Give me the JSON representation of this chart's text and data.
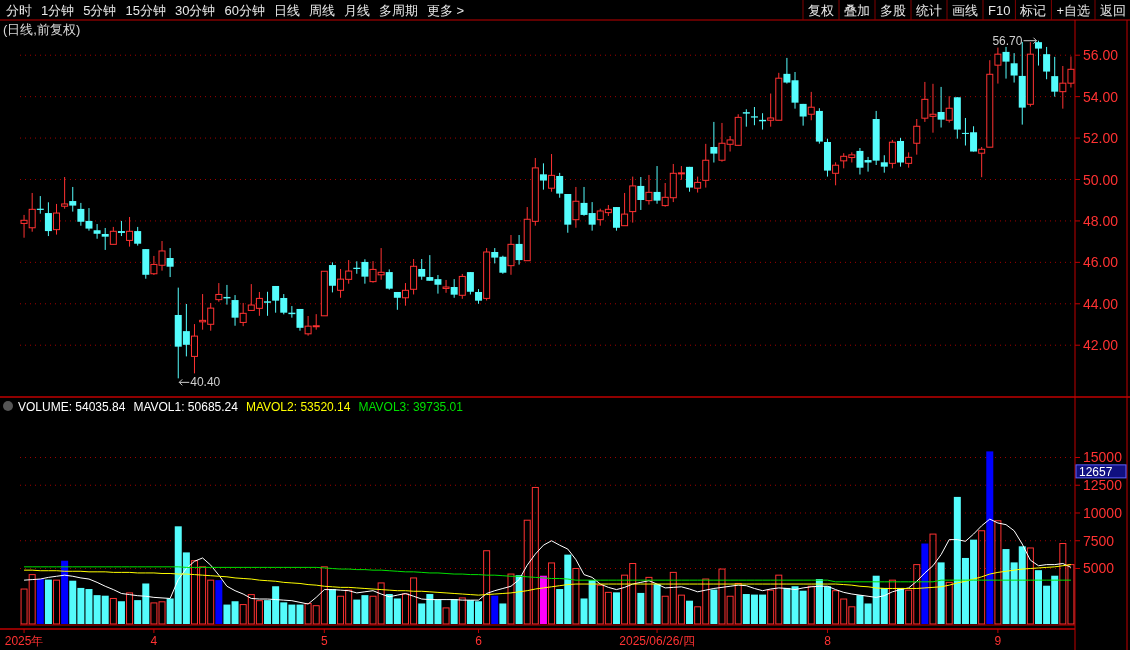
{
  "chart_data": [
    {
      "type": "other",
      "annotations": [
        "分时",
        "1分钟",
        "5分钟",
        "15分钟",
        "30分钟",
        "60分钟",
        "日线",
        "周线",
        "月线",
        "多周期",
        "更多 >",
        "复权",
        "叠加",
        "多股",
        "统计",
        "画线",
        "F10",
        "标记",
        "+自选",
        "返回"
      ]
    },
    {
      "type": "candlestick",
      "title": "(日线,前复权)",
      "tick_labels": "y",
      "grid": "y",
      "ylim": [
        39.5,
        57.7
      ],
      "colors": [
        "#ff3232",
        "#ff3232",
        "#54fcfc",
        "#54fcfc",
        "#ff3232",
        "#ff3232",
        "#54fcfc",
        "#54fcfc",
        "#54fcfc",
        "#54fcfc",
        "#54fcfc",
        "#ff3232",
        "#54fcfc",
        "#ff3232",
        "#54fcfc",
        "#54fcfc",
        "#ff3232",
        "#ff3232",
        "#54fcfc",
        "#54fcfc",
        "#54fcfc",
        "#ff3232",
        "#ff3232",
        "#ff3232",
        "#ff3232",
        "#54fcfc",
        "#54fcfc",
        "#ff3232",
        "#ff3232",
        "#ff3232",
        "#54fcfc",
        "#54fcfc",
        "#54fcfc",
        "#54fcfc",
        "#54fcfc",
        "#ff3232",
        "#ff3232",
        "#ff3232",
        "#54fcfc",
        "#ff3232",
        "#ff3232",
        "#54fcfc",
        "#54fcfc",
        "#ff3232",
        "#ff3232",
        "#54fcfc",
        "#54fcfc",
        "#ff3232",
        "#ff3232",
        "#54fcfc",
        "#54fcfc",
        "#54fcfc",
        "#ff3232",
        "#54fcfc",
        "#ff3232",
        "#54fcfc",
        "#54fcfc",
        "#ff3232",
        "#54fcfc",
        "#54fcfc",
        "#ff3232",
        "#54fcfc",
        "#ff3232",
        "#ff3232",
        "#54fcfc",
        "#ff3232",
        "#54fcfc",
        "#54fcfc",
        "#ff3232",
        "#54fcfc",
        "#54fcfc",
        "#ff3232",
        "#ff3232",
        "#54fcfc",
        "#ff3232",
        "#ff3232",
        "#54fcfc",
        "#ff3232",
        "#54fcfc",
        "#ff3232",
        "#ff3232",
        "#ff3232",
        "#54fcfc",
        "#ff3232",
        "#ff3232",
        "#54fcfc",
        "#ff3232",
        "#ff3232",
        "#ff3232",
        "#54fcfc",
        "#54fcfc",
        "#54fcfc",
        "#ff3232",
        "#ff3232",
        "#54fcfc",
        "#54fcfc",
        "#54fcfc",
        "#ff3232",
        "#54fcfc",
        "#54fcfc",
        "#ff3232",
        "#ff3232",
        "#ff3232",
        "#54fcfc",
        "#54fcfc",
        "#54fcfc",
        "#54fcfc",
        "#ff3232",
        "#54fcfc",
        "#ff3232",
        "#ff3232",
        "#ff3232",
        "#ff3232",
        "#54fcfc",
        "#ff3232",
        "#54fcfc",
        "#54fcfc",
        "#54fcfc",
        "#ff3232",
        "#ff3232",
        "#ff3232",
        "#54fcfc",
        "#54fcfc",
        "#54fcfc",
        "#ff3232",
        "#54fcfc",
        "#54fcfc",
        "#54fcfc",
        "#ff3232",
        "#ff3232"
      ],
      "yticks": [
        {
          "value": 42,
          "label": "42.00"
        },
        {
          "value": 44,
          "label": "44.00"
        },
        {
          "value": 46,
          "label": "46.00"
        },
        {
          "value": 48,
          "label": "48.00"
        },
        {
          "value": 50,
          "label": "50.00"
        },
        {
          "value": 52,
          "label": "52.00"
        },
        {
          "value": 54,
          "label": "54.00"
        },
        {
          "value": 56,
          "label": "56.00"
        }
      ],
      "annotations": [
        "56.70",
        "40.40"
      ],
      "categories": [
        null,
        null,
        null,
        null,
        null,
        null,
        null,
        null,
        null,
        null,
        null,
        null,
        null,
        null,
        null,
        null,
        null,
        null,
        null,
        null,
        null,
        null,
        null,
        null,
        null,
        null,
        null,
        null,
        null,
        null,
        null,
        null,
        null,
        null,
        null,
        null,
        null,
        null,
        null,
        null,
        null,
        null,
        null,
        null,
        null,
        null,
        null,
        null,
        null,
        null,
        null,
        null,
        null,
        null,
        null,
        null,
        null,
        null,
        null,
        null,
        null,
        null,
        null,
        null,
        null,
        null,
        null,
        null,
        null,
        null,
        null,
        null,
        null,
        null,
        null,
        null,
        null,
        null,
        null,
        null,
        null,
        null,
        null,
        null,
        null,
        null,
        null,
        null,
        null,
        null,
        null,
        null,
        null,
        null,
        null,
        null,
        null,
        null,
        null,
        null,
        null,
        null,
        null,
        null,
        null,
        null,
        null,
        null,
        null,
        null,
        null,
        null,
        null,
        null,
        null,
        null,
        null,
        null,
        null,
        null,
        null,
        null,
        null,
        null,
        null,
        null,
        null,
        null,
        null,
        null
      ],
      "ohlc": [
        [
          47.88,
          48.29,
          47.19,
          48.03
        ],
        [
          47.67,
          49.35,
          47.48,
          48.56
        ],
        [
          48.59,
          49.2,
          48.35,
          48.53
        ],
        [
          48.38,
          48.9,
          47.27,
          47.51
        ],
        [
          47.58,
          48.82,
          47.34,
          48.38
        ],
        [
          48.71,
          50.12,
          48.59,
          48.82
        ],
        [
          48.96,
          49.64,
          48.45,
          48.74
        ],
        [
          48.58,
          48.87,
          47.77,
          47.96
        ],
        [
          48.0,
          48.62,
          47.53,
          47.63
        ],
        [
          47.55,
          47.85,
          47.14,
          47.38
        ],
        [
          47.37,
          47.66,
          46.6,
          47.24
        ],
        [
          46.87,
          47.71,
          46.87,
          47.5
        ],
        [
          47.51,
          48.0,
          47.27,
          47.42
        ],
        [
          47.06,
          48.19,
          46.76,
          47.5
        ],
        [
          47.51,
          47.71,
          46.81,
          46.9
        ],
        [
          46.64,
          46.64,
          45.21,
          45.4
        ],
        [
          45.45,
          46.31,
          45.39,
          45.9
        ],
        [
          45.86,
          47.03,
          45.6,
          46.55
        ],
        [
          46.21,
          46.69,
          45.29,
          45.79
        ],
        [
          43.46,
          44.78,
          40.4,
          41.93
        ],
        [
          42.68,
          43.99,
          41.46,
          42.02
        ],
        [
          41.46,
          43.02,
          40.64,
          42.44
        ],
        [
          43.13,
          44.47,
          42.75,
          43.2
        ],
        [
          43.01,
          44.04,
          42.7,
          43.79
        ],
        [
          44.2,
          45.0,
          44.1,
          44.45
        ],
        [
          44.33,
          44.91,
          43.96,
          44.26
        ],
        [
          44.18,
          44.42,
          42.94,
          43.33
        ],
        [
          43.1,
          44.04,
          42.92,
          43.54
        ],
        [
          43.68,
          44.95,
          43.67,
          43.94
        ],
        [
          43.78,
          44.57,
          43.42,
          44.26
        ],
        [
          44.12,
          44.58,
          43.42,
          44.05
        ],
        [
          44.86,
          44.86,
          43.57,
          44.15
        ],
        [
          44.28,
          44.47,
          43.49,
          43.57
        ],
        [
          43.57,
          43.89,
          43.33,
          43.5
        ],
        [
          43.75,
          43.75,
          42.7,
          42.84
        ],
        [
          42.55,
          43.41,
          42.46,
          42.92
        ],
        [
          42.91,
          43.5,
          42.75,
          42.94
        ],
        [
          43.42,
          45.57,
          43.42,
          45.57
        ],
        [
          45.87,
          46.0,
          44.55,
          44.87
        ],
        [
          44.65,
          45.68,
          44.29,
          45.19
        ],
        [
          45.18,
          46.11,
          44.97,
          45.58
        ],
        [
          45.74,
          46.05,
          45.45,
          45.68
        ],
        [
          46.02,
          46.15,
          44.97,
          45.31
        ],
        [
          45.07,
          46.06,
          45.02,
          45.66
        ],
        [
          45.4,
          46.69,
          45.16,
          45.52
        ],
        [
          45.53,
          45.66,
          44.68,
          44.73
        ],
        [
          44.57,
          44.57,
          43.71,
          44.29
        ],
        [
          44.29,
          45.0,
          43.91,
          44.65
        ],
        [
          44.7,
          46.16,
          44.45,
          45.81
        ],
        [
          45.68,
          46.16,
          45.16,
          45.31
        ],
        [
          45.29,
          46.35,
          45.11,
          45.11
        ],
        [
          45.19,
          45.39,
          44.49,
          44.92
        ],
        [
          44.74,
          45.15,
          44.53,
          44.81
        ],
        [
          44.81,
          45.19,
          44.29,
          44.44
        ],
        [
          44.41,
          45.44,
          44.24,
          45.32
        ],
        [
          45.53,
          45.53,
          44.45,
          44.58
        ],
        [
          44.57,
          44.71,
          44.0,
          44.15
        ],
        [
          44.26,
          46.69,
          44.16,
          46.5
        ],
        [
          46.5,
          46.69,
          45.95,
          46.23
        ],
        [
          46.27,
          46.32,
          45.45,
          45.5
        ],
        [
          45.84,
          47.32,
          45.4,
          46.87
        ],
        [
          46.89,
          47.32,
          45.89,
          46.11
        ],
        [
          46.08,
          48.67,
          46.08,
          48.08
        ],
        [
          47.98,
          51.04,
          47.77,
          50.56
        ],
        [
          50.25,
          50.78,
          49.51,
          49.95
        ],
        [
          49.58,
          51.23,
          49.41,
          50.2
        ],
        [
          50.17,
          50.32,
          49.12,
          49.32
        ],
        [
          49.3,
          49.3,
          47.43,
          47.82
        ],
        [
          48.06,
          49.64,
          47.67,
          48.95
        ],
        [
          48.87,
          49.64,
          48.25,
          48.29
        ],
        [
          48.38,
          48.91,
          47.53,
          47.82
        ],
        [
          48.06,
          48.59,
          47.77,
          48.48
        ],
        [
          48.4,
          48.77,
          48.24,
          48.56
        ],
        [
          48.67,
          48.67,
          47.53,
          47.67
        ],
        [
          47.77,
          49.35,
          47.77,
          48.33
        ],
        [
          48.45,
          50.14,
          47.92,
          49.69
        ],
        [
          49.69,
          50.12,
          48.53,
          49.01
        ],
        [
          48.98,
          50.22,
          48.79,
          49.38
        ],
        [
          49.4,
          50.65,
          48.83,
          48.98
        ],
        [
          48.74,
          49.83,
          48.69,
          49.14
        ],
        [
          49.12,
          50.75,
          48.91,
          50.3
        ],
        [
          50.28,
          50.65,
          49.99,
          50.32
        ],
        [
          50.61,
          50.61,
          49.41,
          49.61
        ],
        [
          49.58,
          50.14,
          49.37,
          49.86
        ],
        [
          49.96,
          51.72,
          49.61,
          50.93
        ],
        [
          51.57,
          52.78,
          50.82,
          51.25
        ],
        [
          50.93,
          52.73,
          50.86,
          51.75
        ],
        [
          51.7,
          52.1,
          51.35,
          51.91
        ],
        [
          51.65,
          53.15,
          51.65,
          53.0
        ],
        [
          53.25,
          53.39,
          52.55,
          53.18
        ],
        [
          53.05,
          53.5,
          52.62,
          52.99
        ],
        [
          52.88,
          53.2,
          52.41,
          52.81
        ],
        [
          52.86,
          54.15,
          52.55,
          52.97
        ],
        [
          52.86,
          55.15,
          52.86,
          54.89
        ],
        [
          55.1,
          55.87,
          54.63,
          54.68
        ],
        [
          54.79,
          55.19,
          53.42,
          53.71
        ],
        [
          53.65,
          53.65,
          52.6,
          53.04
        ],
        [
          53.15,
          54.23,
          52.86,
          53.49
        ],
        [
          53.31,
          53.44,
          51.73,
          51.83
        ],
        [
          51.81,
          51.97,
          50.14,
          50.43
        ],
        [
          50.3,
          50.83,
          49.72,
          50.69
        ],
        [
          50.9,
          51.27,
          50.54,
          51.12
        ],
        [
          51.06,
          51.31,
          50.82,
          51.19
        ],
        [
          51.38,
          51.52,
          50.24,
          50.57
        ],
        [
          50.94,
          51.09,
          50.38,
          50.82
        ],
        [
          52.92,
          53.31,
          50.7,
          50.91
        ],
        [
          50.83,
          51.17,
          50.33,
          50.62
        ],
        [
          50.78,
          51.91,
          50.54,
          51.8
        ],
        [
          51.86,
          52.01,
          50.62,
          50.82
        ],
        [
          50.78,
          51.31,
          50.57,
          51.07
        ],
        [
          51.75,
          52.92,
          51.2,
          52.57
        ],
        [
          52.96,
          54.71,
          52.78,
          53.87
        ],
        [
          53.05,
          54.62,
          52.26,
          53.15
        ],
        [
          53.26,
          54.47,
          52.51,
          52.89
        ],
        [
          52.86,
          54.02,
          52.75,
          53.44
        ],
        [
          53.97,
          53.97,
          51.97,
          52.41
        ],
        [
          52.25,
          52.97,
          51.64,
          52.2
        ],
        [
          52.28,
          52.57,
          51.35,
          51.35
        ],
        [
          51.27,
          51.57,
          50.11,
          51.46
        ],
        [
          51.56,
          55.76,
          51.56,
          55.08
        ],
        [
          55.52,
          56.37,
          54.63,
          56.05
        ],
        [
          56.16,
          56.4,
          54.87,
          55.69
        ],
        [
          55.61,
          56.1,
          54.68,
          55.02
        ],
        [
          55.0,
          56.64,
          52.65,
          53.47
        ],
        [
          53.63,
          56.63,
          53.52,
          56.05
        ],
        [
          56.63,
          56.7,
          55.5,
          56.32
        ],
        [
          56.05,
          56.4,
          54.84,
          55.21
        ],
        [
          54.99,
          55.92,
          54.0,
          54.24
        ],
        [
          54.24,
          55.48,
          53.42,
          54.65
        ],
        [
          54.65,
          55.94,
          54.44,
          55.32
        ]
      ]
    },
    {
      "type": "bar",
      "title": "VOLUME: 54035.84",
      "legend": "top left",
      "grid": "y",
      "ylim": [
        0,
        20450
      ],
      "yticks": [
        5000,
        7500,
        10000,
        12500,
        15000
      ],
      "annotations": [
        "12657"
      ],
      "categories": [
        "2025年",
        null,
        null,
        null,
        null,
        null,
        null,
        null,
        null,
        null,
        null,
        null,
        null,
        null,
        null,
        null,
        "4",
        null,
        null,
        null,
        null,
        null,
        null,
        null,
        null,
        null,
        null,
        null,
        null,
        null,
        null,
        null,
        null,
        null,
        null,
        null,
        null,
        "5",
        null,
        null,
        null,
        null,
        null,
        null,
        null,
        null,
        null,
        null,
        null,
        null,
        null,
        null,
        null,
        null,
        null,
        null,
        "6",
        null,
        null,
        null,
        null,
        null,
        null,
        null,
        null,
        null,
        null,
        null,
        null,
        null,
        null,
        null,
        null,
        null,
        null,
        null,
        null,
        null,
        "2025/06/26/四",
        null,
        null,
        null,
        null,
        null,
        null,
        null,
        null,
        null,
        null,
        null,
        null,
        null,
        null,
        null,
        null,
        null,
        null,
        null,
        null,
        "8",
        null,
        null,
        null,
        null,
        null,
        null,
        null,
        null,
        null,
        null,
        null,
        null,
        null,
        null,
        null,
        null,
        null,
        null,
        null,
        null,
        "9",
        null,
        null,
        null,
        null,
        null,
        null,
        null,
        null,
        null
      ],
      "series": [
        {
          "type": "bar",
          "values": [
            3150,
            4450,
            4050,
            4000,
            3950,
            5700,
            3900,
            3250,
            3150,
            2600,
            2550,
            2300,
            2050,
            2800,
            2150,
            3650,
            1900,
            2000,
            2300,
            8800,
            6450,
            5700,
            5150,
            3950,
            3950,
            1750,
            2050,
            1750,
            2650,
            2100,
            2150,
            3400,
            1950,
            1750,
            1750,
            1850,
            1650,
            5150,
            3150,
            2500,
            3050,
            2200,
            2600,
            2500,
            3700,
            2700,
            2300,
            2700,
            4150,
            1850,
            2700,
            2200,
            1450,
            2250,
            2350,
            2150,
            2050,
            6600,
            2550,
            1850,
            4500,
            4400,
            9350,
            12300,
            4350,
            5500,
            3150,
            6250,
            5000,
            2300,
            3950,
            3500,
            2850,
            2850,
            4400,
            5450,
            2800,
            4200,
            3600,
            2500,
            4650,
            2600,
            2100,
            1550,
            4050,
            3100,
            4950,
            2500,
            3650,
            2700,
            2650,
            2650,
            3050,
            4400,
            3250,
            3400,
            3000,
            3400,
            4050,
            3400,
            3000,
            2250,
            1550,
            2600,
            1850,
            4350,
            3250,
            3950,
            3250,
            3050,
            5350,
            7250,
            8100,
            5550,
            3750,
            11450,
            5950,
            7600,
            8400,
            15550,
            9300,
            6750,
            5550,
            7000,
            6850,
            4850,
            3450,
            4350,
            7250,
            5350
          ],
          "colors": [
            "#ff3232",
            "#ff3232",
            "#0000ff",
            "#54fcfc",
            "#ff3232",
            "#0000ff",
            "#54fcfc",
            "#54fcfc",
            "#54fcfc",
            "#54fcfc",
            "#54fcfc",
            "#ff3232",
            "#54fcfc",
            "#ff3232",
            "#54fcfc",
            "#54fcfc",
            "#ff3232",
            "#ff3232",
            "#54fcfc",
            "#54fcfc",
            "#54fcfc",
            "#ff3232",
            "#ff3232",
            "#ff3232",
            "#0000ff",
            "#54fcfc",
            "#54fcfc",
            "#ff3232",
            "#ff3232",
            "#ff3232",
            "#54fcfc",
            "#54fcfc",
            "#54fcfc",
            "#54fcfc",
            "#54fcfc",
            "#ff3232",
            "#ff3232",
            "#ff3232",
            "#54fcfc",
            "#ff3232",
            "#ff3232",
            "#54fcfc",
            "#54fcfc",
            "#ff3232",
            "#ff3232",
            "#54fcfc",
            "#54fcfc",
            "#ff3232",
            "#ff3232",
            "#54fcfc",
            "#54fcfc",
            "#54fcfc",
            "#ff3232",
            "#54fcfc",
            "#ff3232",
            "#54fcfc",
            "#54fcfc",
            "#ff3232",
            "#0000ff",
            "#54fcfc",
            "#ff3232",
            "#54fcfc",
            "#ff3232",
            "#ff3232",
            "#ff00ff",
            "#ff3232",
            "#54fcfc",
            "#54fcfc",
            "#ff3232",
            "#54fcfc",
            "#54fcfc",
            "#ff3232",
            "#ff3232",
            "#54fcfc",
            "#ff3232",
            "#ff3232",
            "#54fcfc",
            "#ff3232",
            "#54fcfc",
            "#ff3232",
            "#ff3232",
            "#ff3232",
            "#54fcfc",
            "#ff3232",
            "#ff3232",
            "#54fcfc",
            "#ff3232",
            "#ff3232",
            "#ff3232",
            "#54fcfc",
            "#54fcfc",
            "#54fcfc",
            "#ff3232",
            "#ff3232",
            "#54fcfc",
            "#54fcfc",
            "#54fcfc",
            "#ff3232",
            "#54fcfc",
            "#54fcfc",
            "#ff3232",
            "#ff3232",
            "#ff3232",
            "#54fcfc",
            "#54fcfc",
            "#54fcfc",
            "#54fcfc",
            "#ff3232",
            "#54fcfc",
            "#ff3232",
            "#ff3232",
            "#0000ff",
            "#ff3232",
            "#54fcfc",
            "#ff3232",
            "#54fcfc",
            "#54fcfc",
            "#54fcfc",
            "#ff3232",
            "#0000ff",
            "#ff3232",
            "#54fcfc",
            "#54fcfc",
            "#54fcfc",
            "#ff3232",
            "#54fcfc",
            "#54fcfc",
            "#54fcfc",
            "#ff3232",
            "#ff3232"
          ]
        },
        {
          "name": "MAVOL1: 50685.24",
          "type": "line",
          "color": "#ffffff",
          "values": [
            3950,
            4000,
            4050,
            4200,
            4300,
            4400,
            4300,
            4150,
            4050,
            3750,
            3400,
            3100,
            2750,
            2650,
            2550,
            2500,
            2400,
            2350,
            2300,
            4000,
            5000,
            5650,
            5950,
            5300,
            4400,
            3400,
            3000,
            2700,
            2300,
            2250,
            2250,
            2200,
            2150,
            2100,
            1950,
            1800,
            2400,
            3100,
            3100,
            3050,
            3000,
            2800,
            2900,
            3000,
            2700,
            2450,
            2600,
            2750,
            2500,
            2250,
            2200,
            2200,
            2200,
            2200,
            2150,
            2150,
            2150,
            2750,
            3000,
            3200,
            3400,
            4000,
            5300,
            6300,
            7100,
            7500,
            7100,
            6750,
            5800,
            4450,
            4200,
            3600,
            3300,
            3100,
            3300,
            3600,
            3750,
            3900,
            3600,
            3250,
            3300,
            3350,
            3150,
            2900,
            3050,
            3200,
            3300,
            3400,
            3500,
            3450,
            3200,
            3000,
            3150,
            3250,
            3200,
            3100,
            3250,
            3350,
            3400,
            3400,
            3100,
            2850,
            2700,
            2600,
            2500,
            2400,
            2550,
            2900,
            3100,
            3250,
            3850,
            4600,
            5250,
            6250,
            7600,
            7600,
            7450,
            8100,
            8850,
            9450,
            9100,
            8950,
            8400,
            7200,
            5750,
            5250,
            5350,
            5350,
            5450,
            5100
          ]
        },
        {
          "name": "MAVOL2: 53520.14",
          "type": "line",
          "color": "#ffff00",
          "values": [
            4850,
            4850,
            4800,
            4800,
            4800,
            4750,
            4750,
            4750,
            4700,
            4700,
            4700,
            4650,
            4650,
            4650,
            4600,
            4600,
            4600,
            4550,
            4550,
            4500,
            4500,
            4450,
            4400,
            4350,
            4300,
            4250,
            4150,
            4100,
            4050,
            3950,
            3900,
            3850,
            3750,
            3700,
            3650,
            3550,
            3500,
            3400,
            3350,
            3300,
            3300,
            3250,
            3200,
            3150,
            3100,
            3050,
            3000,
            3000,
            2950,
            2950,
            2900,
            2850,
            2800,
            2750,
            2700,
            2650,
            2600,
            2650,
            2700,
            2750,
            2800,
            2900,
            3000,
            3150,
            3250,
            3350,
            3450,
            3550,
            3600,
            3600,
            3600,
            3600,
            3600,
            3600,
            3600,
            3600,
            3600,
            3600,
            3600,
            3600,
            3600,
            3600,
            3600,
            3600,
            3600,
            3600,
            3600,
            3600,
            3600,
            3600,
            3600,
            3600,
            3600,
            3600,
            3600,
            3600,
            3600,
            3600,
            3600,
            3600,
            3600,
            3550,
            3500,
            3400,
            3350,
            3250,
            3200,
            3200,
            3200,
            3200,
            3200,
            3250,
            3300,
            3350,
            3500,
            3700,
            3850,
            4050,
            4250,
            4500,
            4650,
            4750,
            4850,
            4950,
            5000,
            5050,
            5100,
            5150,
            5250,
            5350
          ]
        },
        {
          "name": "MAVOL3: 39735.01",
          "type": "line",
          "color": "#00e000",
          "values": [
            5150,
            5150,
            5150,
            5150,
            5150,
            5150,
            5150,
            5150,
            5150,
            5150,
            5150,
            5150,
            5150,
            5150,
            5150,
            5150,
            5150,
            5150,
            5150,
            5150,
            5100,
            5100,
            5100,
            5100,
            5100,
            5100,
            5100,
            5100,
            5100,
            5100,
            5100,
            5100,
            5100,
            5100,
            5100,
            5100,
            5100,
            5050,
            5000,
            4950,
            4950,
            4900,
            4900,
            4850,
            4850,
            4800,
            4750,
            4700,
            4700,
            4650,
            4600,
            4600,
            4550,
            4500,
            4500,
            4450,
            4450,
            4400,
            4400,
            4350,
            4300,
            4300,
            4250,
            4200,
            4150,
            4100,
            4100,
            4050,
            3950,
            3950,
            3950,
            3950,
            3950,
            3950,
            3950,
            3950,
            3950,
            3950,
            3950,
            3950,
            3950,
            3950,
            3950,
            3950,
            3950,
            3950,
            3950,
            3950,
            3950,
            3950,
            3950,
            3950,
            3950,
            3950,
            3950,
            3950,
            3950,
            3950,
            3950,
            3950,
            3800,
            3800,
            3800,
            3800,
            3800,
            3800,
            3800,
            3800,
            3800,
            3800,
            3800,
            3800,
            3800,
            3950,
            3950,
            3950,
            3950,
            3950,
            3950,
            3950,
            3950,
            3950,
            3950,
            3950,
            3950,
            3950,
            3950,
            3950,
            3950,
            3950
          ]
        }
      ]
    }
  ]
}
